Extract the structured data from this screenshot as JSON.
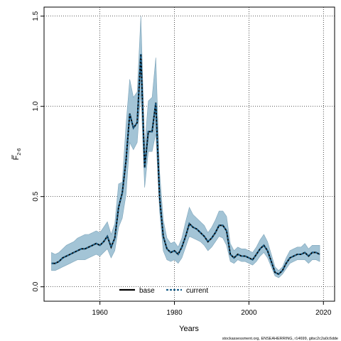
{
  "chart_data": {
    "type": "area",
    "xlabel": "Years",
    "ylabel_main": "F",
    "ylabel_sub": "2-6",
    "xlim": [
      1945,
      2023
    ],
    "ylim": [
      -0.08,
      1.55
    ],
    "xticks": [
      1960,
      1980,
      2000,
      2020
    ],
    "yticks": [
      0.0,
      0.5,
      1.0,
      1.5
    ],
    "ytick_labels": [
      "0.0",
      "0.5",
      "1.0",
      "1.5"
    ],
    "grid": true,
    "legend_position": "bottom-center",
    "colors": {
      "band": "#a3c4d6",
      "band_edge": "#7fa5ba",
      "base": "#000000",
      "current": "#1a5f8a",
      "grid": "#000000"
    },
    "years": [
      1947,
      1948,
      1949,
      1950,
      1951,
      1952,
      1953,
      1954,
      1955,
      1956,
      1957,
      1958,
      1959,
      1960,
      1961,
      1962,
      1963,
      1964,
      1965,
      1966,
      1967,
      1968,
      1969,
      1970,
      1971,
      1972,
      1973,
      1974,
      1975,
      1976,
      1977,
      1978,
      1979,
      1980,
      1981,
      1982,
      1983,
      1984,
      1985,
      1986,
      1987,
      1988,
      1989,
      1990,
      1991,
      1992,
      1993,
      1994,
      1995,
      1996,
      1997,
      1998,
      1999,
      2000,
      2001,
      2002,
      2003,
      2004,
      2005,
      2006,
      2007,
      2008,
      2009,
      2010,
      2011,
      2012,
      2013,
      2014,
      2015,
      2016,
      2017,
      2018,
      2019
    ],
    "series": [
      {
        "name": "base",
        "values": [
          0.13,
          0.13,
          0.14,
          0.16,
          0.17,
          0.18,
          0.19,
          0.2,
          0.21,
          0.21,
          0.22,
          0.23,
          0.24,
          0.23,
          0.25,
          0.28,
          0.22,
          0.27,
          0.44,
          0.52,
          0.7,
          0.96,
          0.88,
          0.91,
          1.29,
          0.66,
          0.86,
          0.86,
          1.02,
          0.5,
          0.28,
          0.21,
          0.19,
          0.2,
          0.18,
          0.22,
          0.28,
          0.35,
          0.33,
          0.32,
          0.3,
          0.28,
          0.25,
          0.27,
          0.3,
          0.34,
          0.34,
          0.31,
          0.18,
          0.16,
          0.18,
          0.17,
          0.17,
          0.16,
          0.15,
          0.18,
          0.21,
          0.23,
          0.2,
          0.14,
          0.08,
          0.07,
          0.09,
          0.13,
          0.16,
          0.17,
          0.18,
          0.18,
          0.19,
          0.17,
          0.19,
          0.19,
          0.18
        ]
      },
      {
        "name": "current",
        "values": [
          0.13,
          0.13,
          0.14,
          0.16,
          0.17,
          0.18,
          0.19,
          0.2,
          0.21,
          0.21,
          0.22,
          0.23,
          0.24,
          0.23,
          0.25,
          0.28,
          0.22,
          0.27,
          0.44,
          0.52,
          0.7,
          0.96,
          0.88,
          0.91,
          1.29,
          0.66,
          0.86,
          0.86,
          1.02,
          0.5,
          0.28,
          0.21,
          0.19,
          0.2,
          0.18,
          0.22,
          0.28,
          0.35,
          0.33,
          0.32,
          0.3,
          0.28,
          0.25,
          0.27,
          0.3,
          0.34,
          0.34,
          0.31,
          0.18,
          0.16,
          0.18,
          0.17,
          0.17,
          0.16,
          0.15,
          0.18,
          0.21,
          0.23,
          0.2,
          0.14,
          0.08,
          0.07,
          0.09,
          0.13,
          0.16,
          0.17,
          0.18,
          0.18,
          0.19,
          0.17,
          0.19,
          0.19,
          0.18
        ]
      }
    ],
    "band_lower": [
      0.09,
      0.09,
      0.1,
      0.11,
      0.12,
      0.13,
      0.14,
      0.15,
      0.15,
      0.15,
      0.16,
      0.17,
      0.18,
      0.17,
      0.19,
      0.21,
      0.16,
      0.2,
      0.33,
      0.38,
      0.51,
      0.8,
      0.76,
      0.8,
      1.08,
      0.55,
      0.75,
      0.75,
      0.85,
      0.42,
      0.2,
      0.15,
      0.14,
      0.15,
      0.13,
      0.16,
      0.22,
      0.28,
      0.27,
      0.26,
      0.25,
      0.23,
      0.2,
      0.22,
      0.25,
      0.28,
      0.27,
      0.23,
      0.14,
      0.13,
      0.15,
      0.14,
      0.14,
      0.13,
      0.12,
      0.14,
      0.17,
      0.19,
      0.16,
      0.11,
      0.06,
      0.05,
      0.07,
      0.1,
      0.13,
      0.14,
      0.15,
      0.15,
      0.15,
      0.13,
      0.15,
      0.15,
      0.14
    ],
    "band_upper": [
      0.19,
      0.18,
      0.19,
      0.21,
      0.23,
      0.24,
      0.25,
      0.27,
      0.28,
      0.29,
      0.29,
      0.3,
      0.31,
      0.3,
      0.33,
      0.36,
      0.29,
      0.35,
      0.57,
      0.58,
      0.9,
      1.15,
      1.05,
      1.08,
      1.5,
      0.78,
      1.03,
      1.05,
      1.27,
      0.64,
      0.37,
      0.27,
      0.24,
      0.25,
      0.22,
      0.27,
      0.36,
      0.44,
      0.4,
      0.38,
      0.36,
      0.34,
      0.3,
      0.33,
      0.37,
      0.42,
      0.42,
      0.39,
      0.24,
      0.2,
      0.22,
      0.21,
      0.21,
      0.2,
      0.19,
      0.22,
      0.26,
      0.29,
      0.25,
      0.18,
      0.11,
      0.09,
      0.11,
      0.16,
      0.2,
      0.21,
      0.22,
      0.22,
      0.24,
      0.21,
      0.23,
      0.23,
      0.23
    ]
  },
  "legend": {
    "items": [
      {
        "label": "base"
      },
      {
        "label": "current"
      }
    ]
  },
  "footer": {
    "source_text": "stockassessment.org, ENSEAHERRING, r14699, gitsc2c2a0c6dde"
  }
}
